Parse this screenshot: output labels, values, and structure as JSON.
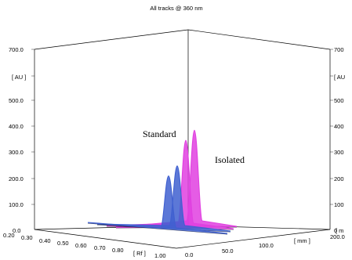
{
  "chart_data": {
    "type": "area",
    "title": "All tracks @ 360 nm",
    "z_ticks_left": [
      "0.0",
      "100.0",
      "200.0",
      "300.0",
      "400.0",
      "500.0",
      "700.0"
    ],
    "z_ticks_right": [
      "0",
      "100",
      "200",
      "300",
      "400",
      "500",
      "700"
    ],
    "z_unit_left": "[ AU ]",
    "z_unit_right": "[ AU",
    "x_ticks": [
      "0.20",
      "0.30",
      "0.40",
      "0.50",
      "0.60",
      "0.70",
      "0.80",
      "1.00"
    ],
    "x_unit": "[ Rf ]",
    "y_ticks": [
      "0.0",
      "50.0",
      "100.0",
      "200.0"
    ],
    "y_unit": "[ mm ]",
    "y_unit_corner": "[ m",
    "zlim": [
      0,
      700
    ],
    "xlim": [
      0.2,
      1.0
    ],
    "ylim": [
      0,
      200
    ],
    "series": [
      {
        "name": "Standard",
        "color": "#e040e0",
        "tracks": [
          {
            "peak_rf": 0.84,
            "peak_au": 325
          },
          {
            "peak_rf": 0.84,
            "peak_au": 355
          }
        ]
      },
      {
        "name": "Isolated",
        "color": "#4060d0",
        "tracks": [
          {
            "peak_rf": 0.84,
            "peak_au": 205
          },
          {
            "peak_rf": 0.84,
            "peak_au": 235
          }
        ]
      }
    ]
  }
}
